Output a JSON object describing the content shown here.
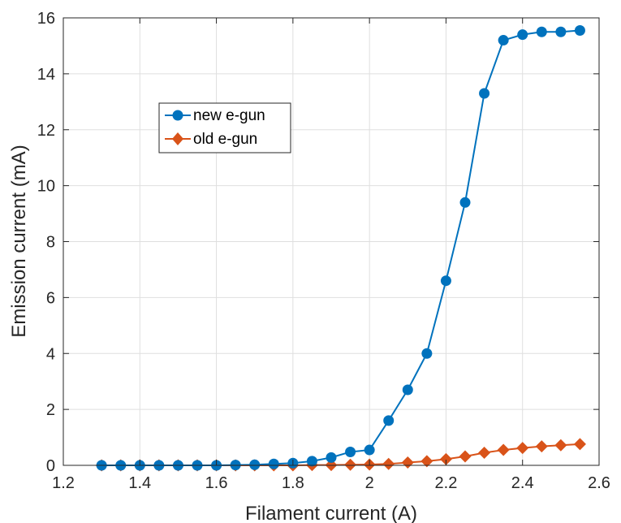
{
  "chart_data": {
    "type": "line",
    "title": "",
    "xlabel": "Filament current (A)",
    "ylabel": "Emission current (mA)",
    "xlim": [
      1.2,
      2.6
    ],
    "ylim": [
      0,
      16
    ],
    "x_ticks": [
      1.2,
      1.4,
      1.6,
      1.8,
      2.0,
      2.2,
      2.4,
      2.6
    ],
    "x_tick_labels": [
      "1.2",
      "1.4",
      "1.6",
      "1.8",
      "2",
      "2.2",
      "2.4",
      "2.6"
    ],
    "y_ticks": [
      0,
      2,
      4,
      6,
      8,
      10,
      12,
      14,
      16
    ],
    "y_tick_labels": [
      "0",
      "2",
      "4",
      "6",
      "8",
      "10",
      "12",
      "14",
      "16"
    ],
    "grid": true,
    "legend_position": "upper-left",
    "x": [
      1.3,
      1.35,
      1.4,
      1.45,
      1.5,
      1.55,
      1.6,
      1.65,
      1.7,
      1.75,
      1.8,
      1.85,
      1.9,
      1.95,
      2.0,
      2.05,
      2.1,
      2.15,
      2.2,
      2.25,
      2.3,
      2.35,
      2.4,
      2.45,
      2.5,
      2.55
    ],
    "series": [
      {
        "name": "new e-gun",
        "color": "#0072BD",
        "marker": "circle",
        "values": [
          0.0,
          0.0,
          0.0,
          0.0,
          0.0,
          0.0,
          0.0,
          0.01,
          0.02,
          0.05,
          0.08,
          0.15,
          0.28,
          0.48,
          0.55,
          1.6,
          2.7,
          4.0,
          6.6,
          9.4,
          13.3,
          15.2,
          15.4,
          15.5,
          15.5,
          15.55
        ]
      },
      {
        "name": "old e-gun",
        "color": "#D95319",
        "marker": "diamond",
        "values": [
          0.0,
          0.0,
          0.0,
          0.0,
          0.0,
          0.0,
          0.0,
          0.0,
          0.0,
          0.0,
          0.0,
          0.01,
          0.01,
          0.02,
          0.03,
          0.05,
          0.1,
          0.15,
          0.22,
          0.32,
          0.45,
          0.55,
          0.62,
          0.68,
          0.72,
          0.76
        ]
      }
    ]
  }
}
